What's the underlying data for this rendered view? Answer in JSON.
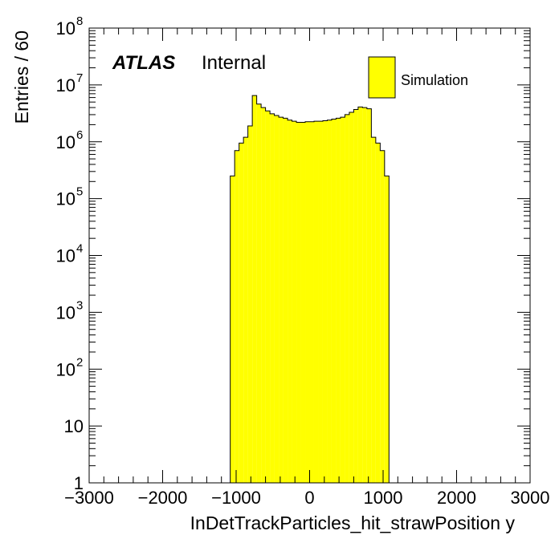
{
  "chart_data": {
    "type": "bar",
    "xlabel": "InDetTrackParticles_hit_strawPosition y",
    "ylabel": "Entries / 60",
    "xlim": [
      -3000,
      3000
    ],
    "ylim": [
      1,
      100000000
    ],
    "y_scale": "log",
    "x_ticks": [
      {
        "value": -3000,
        "label": "−3000"
      },
      {
        "value": -2000,
        "label": "−2000"
      },
      {
        "value": -1000,
        "label": "−1000"
      },
      {
        "value": 0,
        "label": "0"
      },
      {
        "value": 1000,
        "label": "1000"
      },
      {
        "value": 2000,
        "label": "2000"
      },
      {
        "value": 3000,
        "label": "3000"
      }
    ],
    "y_ticks": [
      {
        "value": 1,
        "base": "1",
        "exp": ""
      },
      {
        "value": 10,
        "base": "10",
        "exp": ""
      },
      {
        "value": 100,
        "base": "10",
        "exp": "2"
      },
      {
        "value": 1000,
        "base": "10",
        "exp": "3"
      },
      {
        "value": 10000,
        "base": "10",
        "exp": "4"
      },
      {
        "value": 100000,
        "base": "10",
        "exp": "5"
      },
      {
        "value": 1000000,
        "base": "10",
        "exp": "6"
      },
      {
        "value": 10000000,
        "base": "10",
        "exp": "7"
      },
      {
        "value": 100000000,
        "base": "10",
        "exp": "8"
      }
    ],
    "bin_edges": [
      -1080,
      -1020,
      -960,
      -900,
      -840,
      -780,
      -720,
      -660,
      -600,
      -540,
      -480,
      -420,
      -360,
      -300,
      -240,
      -180,
      -120,
      -60,
      0,
      60,
      120,
      180,
      240,
      300,
      360,
      420,
      480,
      540,
      600,
      660,
      720,
      780,
      840,
      900,
      960,
      1020,
      1080
    ],
    "values": [
      250000,
      700000,
      950000,
      1200000,
      1900000,
      6500000,
      4600000,
      4000000,
      3500000,
      3100000,
      2900000,
      2700000,
      2600000,
      2400000,
      2300000,
      2200000,
      2200000,
      2250000,
      2250000,
      2300000,
      2300000,
      2350000,
      2400000,
      2500000,
      2600000,
      2700000,
      3000000,
      3300000,
      3700000,
      4100000,
      4000000,
      3800000,
      1200000,
      950000,
      700000,
      250000
    ],
    "series": [
      {
        "name": "Simulation",
        "color": "#ffff00"
      }
    ],
    "legend_position": "top-right",
    "annotations": {
      "atlas": "ATLAS",
      "status": "Internal"
    }
  }
}
